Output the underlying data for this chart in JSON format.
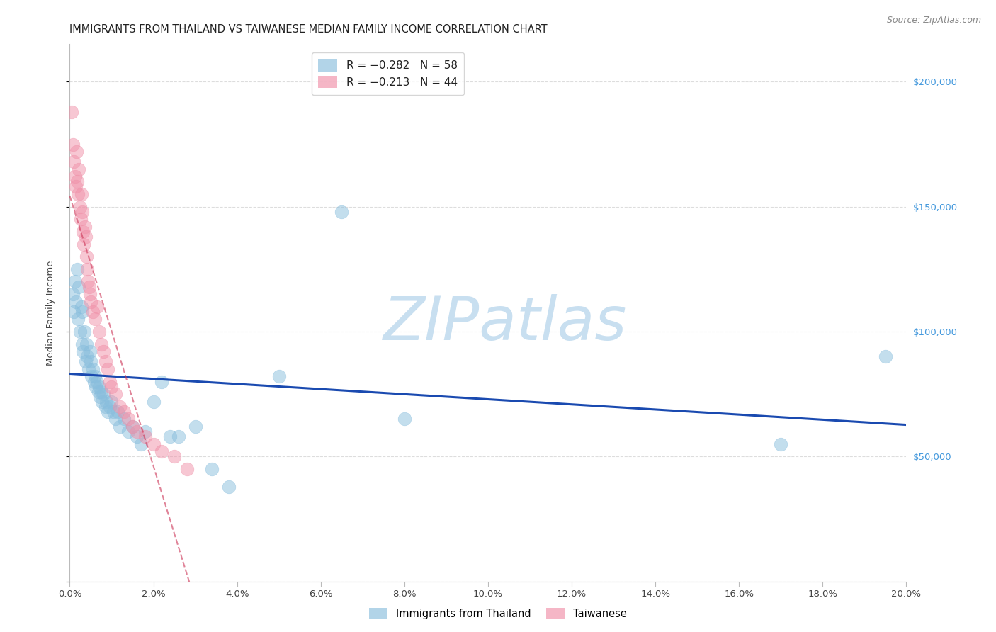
{
  "title": "IMMIGRANTS FROM THAILAND VS TAIWANESE MEDIAN FAMILY INCOME CORRELATION CHART",
  "source": "Source: ZipAtlas.com",
  "ylabel": "Median Family Income",
  "yticks": [
    0,
    50000,
    100000,
    150000,
    200000
  ],
  "ytick_labels": [
    "",
    "$50,000",
    "$100,000",
    "$150,000",
    "$200,000"
  ],
  "xlim": [
    0.0,
    0.2
  ],
  "ylim": [
    0,
    215000
  ],
  "legend_entry1": "R = −0.282   N = 58",
  "legend_entry2": "R = −0.213   N = 44",
  "watermark": "ZIPatlas",
  "watermark_color": "#c8dff0",
  "series1_label": "Immigrants from Thailand",
  "series2_label": "Taiwanese",
  "series1_color": "#89bedd",
  "series2_color": "#f090a8",
  "series1_edge_color": "#6aaed0",
  "series2_edge_color": "#e07090",
  "trendline1_color": "#1a4ab0",
  "trendline2_color": "#cc3355",
  "background_color": "#ffffff",
  "grid_color": "#dddddd",
  "axis_color": "#bbbbbb",
  "title_fontsize": 10.5,
  "label_fontsize": 9.5,
  "tick_fontsize": 9.5,
  "right_tick_color": "#4499dd",
  "series1_x": [
    0.0008,
    0.001,
    0.0012,
    0.0015,
    0.0018,
    0.002,
    0.0022,
    0.0025,
    0.0028,
    0.003,
    0.003,
    0.0032,
    0.0035,
    0.0038,
    0.004,
    0.0042,
    0.0045,
    0.0048,
    0.005,
    0.0052,
    0.0055,
    0.0058,
    0.006,
    0.0062,
    0.0065,
    0.0068,
    0.007,
    0.0072,
    0.0075,
    0.0078,
    0.008,
    0.0085,
    0.0088,
    0.009,
    0.0095,
    0.01,
    0.0105,
    0.011,
    0.0115,
    0.012,
    0.013,
    0.014,
    0.015,
    0.016,
    0.017,
    0.018,
    0.02,
    0.022,
    0.024,
    0.026,
    0.03,
    0.034,
    0.038,
    0.05,
    0.065,
    0.08,
    0.17,
    0.195
  ],
  "series1_y": [
    115000,
    108000,
    120000,
    112000,
    125000,
    105000,
    118000,
    100000,
    110000,
    95000,
    108000,
    92000,
    100000,
    88000,
    95000,
    90000,
    85000,
    92000,
    88000,
    82000,
    85000,
    80000,
    82000,
    78000,
    80000,
    76000,
    78000,
    74000,
    76000,
    72000,
    75000,
    70000,
    72000,
    68000,
    70000,
    72000,
    68000,
    65000,
    68000,
    62000,
    65000,
    60000,
    62000,
    58000,
    55000,
    60000,
    72000,
    80000,
    58000,
    58000,
    62000,
    45000,
    38000,
    82000,
    148000,
    65000,
    55000,
    90000
  ],
  "series2_x": [
    0.0005,
    0.0008,
    0.001,
    0.0012,
    0.0014,
    0.0016,
    0.0018,
    0.002,
    0.0022,
    0.0024,
    0.0026,
    0.0028,
    0.003,
    0.0032,
    0.0034,
    0.0036,
    0.0038,
    0.004,
    0.0042,
    0.0044,
    0.0046,
    0.0048,
    0.005,
    0.0055,
    0.006,
    0.0065,
    0.007,
    0.0075,
    0.008,
    0.0085,
    0.009,
    0.0095,
    0.01,
    0.011,
    0.012,
    0.013,
    0.014,
    0.015,
    0.016,
    0.018,
    0.02,
    0.022,
    0.025,
    0.028
  ],
  "series2_y": [
    188000,
    175000,
    168000,
    162000,
    158000,
    172000,
    160000,
    155000,
    165000,
    150000,
    145000,
    155000,
    148000,
    140000,
    135000,
    142000,
    138000,
    130000,
    125000,
    120000,
    118000,
    115000,
    112000,
    108000,
    105000,
    110000,
    100000,
    95000,
    92000,
    88000,
    85000,
    80000,
    78000,
    75000,
    70000,
    68000,
    65000,
    62000,
    60000,
    58000,
    55000,
    52000,
    50000,
    45000
  ]
}
